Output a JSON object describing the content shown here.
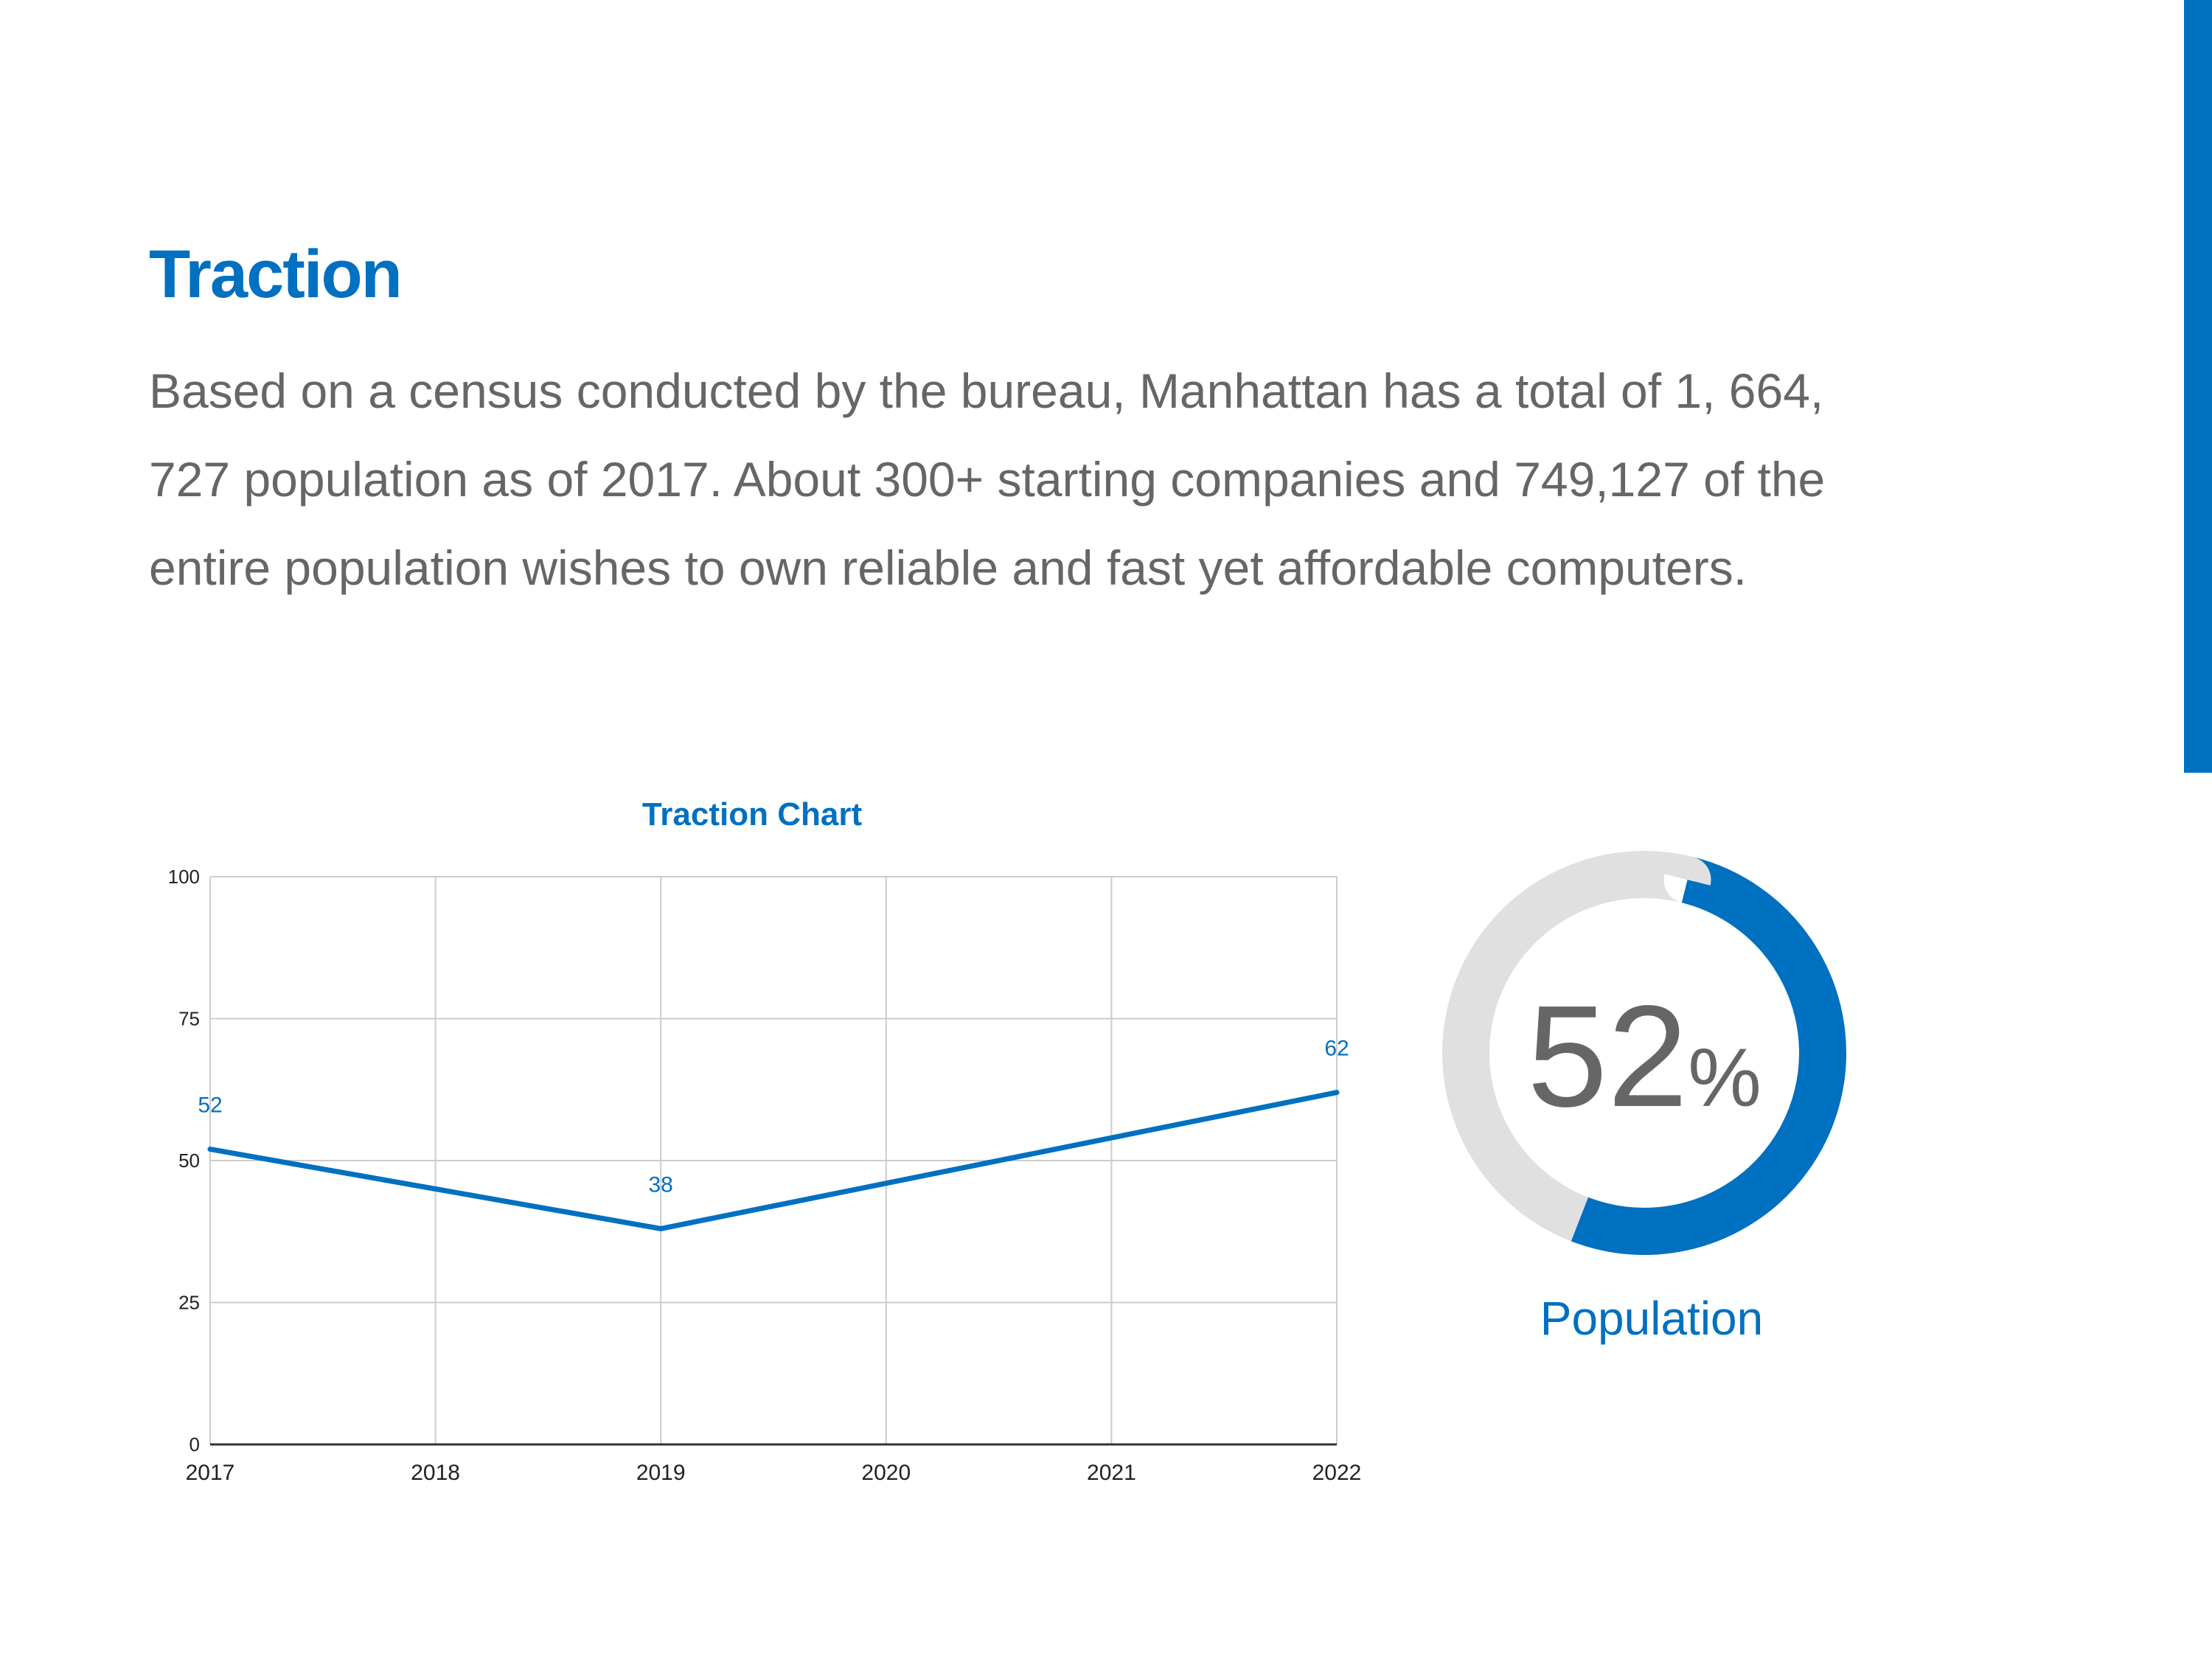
{
  "slide": {
    "title": "Traction",
    "body_lines": [
      "Based on a census conducted by the bureau, Manhattan has a total of 1, 664,",
      "727 population as of 2017. About 300+ starting companies and 749,127 of the",
      "entire population wishes to own reliable and fast yet affordable computers."
    ],
    "accent_color": "#0070C0"
  },
  "chart_data": [
    {
      "type": "line",
      "title": "Traction Chart",
      "xlabel": "",
      "ylabel": "",
      "x": [
        "2017",
        "2018",
        "2019",
        "2020",
        "2021",
        "2022"
      ],
      "series": [
        {
          "values": [
            52,
            45,
            38,
            46,
            54,
            62
          ],
          "color": "#0070C0"
        }
      ],
      "data_labels": [
        {
          "x": "2017",
          "value": "52"
        },
        {
          "x": "2019",
          "value": "38"
        },
        {
          "x": "2022",
          "value": "62"
        }
      ],
      "ylim": [
        0,
        100
      ],
      "yticks": [
        0,
        25,
        50,
        75,
        100
      ],
      "grid": true,
      "legend": "none"
    },
    {
      "type": "pie",
      "subtype": "donut",
      "label": "Population",
      "value": 52,
      "display_number": "52",
      "display_unit": "%",
      "slices": [
        {
          "value": 52,
          "color": "#0070C0"
        },
        {
          "value": 48,
          "color": "#E0E0E0"
        }
      ]
    }
  ]
}
